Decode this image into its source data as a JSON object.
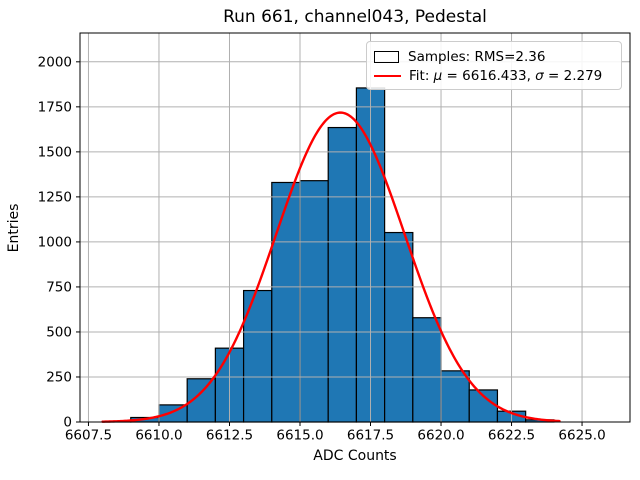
{
  "chart_data": {
    "type": "bar",
    "subtype": "histogram",
    "title": "Run 661, channel043, Pedestal",
    "xlabel": "ADC Counts",
    "ylabel": "Entries",
    "bin_edges": [
      6608,
      6609,
      6610,
      6611,
      6612,
      6613,
      6614,
      6615,
      6616,
      6617,
      6618,
      6619,
      6620,
      6621,
      6622,
      6623,
      6624
    ],
    "values": [
      4,
      25,
      95,
      240,
      410,
      730,
      1330,
      1340,
      1635,
      1855,
      1052,
      579,
      284,
      178,
      60,
      12
    ],
    "xlim": [
      6607.2,
      6626.7
    ],
    "ylim": [
      0,
      2160
    ],
    "xticks": [
      6607.5,
      6610.0,
      6612.5,
      6615.0,
      6617.5,
      6620.0,
      6622.5,
      6625.0
    ],
    "xtick_labels": [
      "6607.5",
      "6610.0",
      "6612.5",
      "6615.0",
      "6617.5",
      "6620.0",
      "6622.5",
      "6625.0"
    ],
    "yticks": [
      0,
      250,
      500,
      750,
      1000,
      1250,
      1500,
      1750,
      2000
    ],
    "ytick_labels": [
      "0",
      "250",
      "500",
      "750",
      "1000",
      "1250",
      "1500",
      "1750",
      "2000"
    ],
    "grid": true,
    "legend_position": "upper right",
    "legend": [
      {
        "marker": "patch",
        "color": "#1f77b4",
        "label": "Samples: RMS=2.36"
      },
      {
        "marker": "line",
        "color": "#ff0000",
        "label": "Fit: μ = 6616.433, σ = 2.279"
      }
    ],
    "fit_curve": {
      "shape": "gaussian",
      "mu": 6616.433,
      "sigma": 2.279,
      "amplitude": 1718,
      "x_start": 6608.0,
      "x_end": 6624.2,
      "color": "#ff0000"
    },
    "colors": {
      "bar_fill": "#1f77b4",
      "bar_edge": "#000000",
      "grid": "#b0b0b0",
      "fit_line": "#ff0000",
      "spine": "#000000",
      "background": "#ffffff"
    }
  }
}
